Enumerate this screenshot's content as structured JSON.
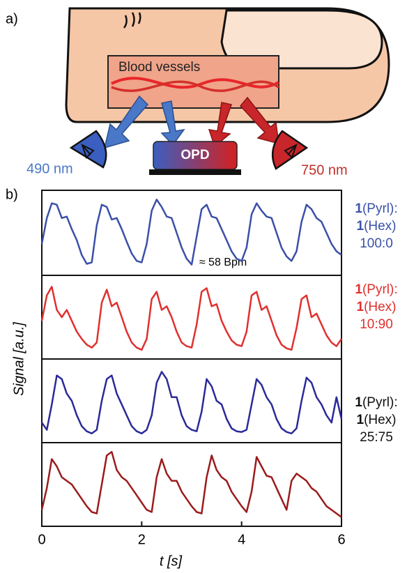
{
  "diagram": {
    "panel_a": "a)",
    "panel_b": "b)",
    "box_label": "Blood vessels",
    "detector": "OPD",
    "led_left": "490 nm",
    "led_right": "750 nm"
  },
  "chart_data": {
    "type": "line",
    "x_label": "t [s]",
    "y_label": "Signal [a.u.]",
    "annotation": "≈ 58 Bpm",
    "xlim": [
      0,
      6
    ],
    "xticks": [
      0,
      2,
      4,
      6
    ],
    "ylim": [
      0,
      1
    ],
    "x": [
      0,
      0.1,
      0.2,
      0.3,
      0.4,
      0.5,
      0.6,
      0.7,
      0.8,
      0.9,
      1,
      1.1,
      1.2,
      1.3,
      1.4,
      1.5,
      1.6,
      1.7,
      1.8,
      1.9,
      2,
      2.1,
      2.2,
      2.3,
      2.4,
      2.5,
      2.6,
      2.7,
      2.8,
      2.9,
      3,
      3.1,
      3.2,
      3.3,
      3.4,
      3.5,
      3.6,
      3.7,
      3.8,
      3.9,
      4,
      4.1,
      4.2,
      4.3,
      4.4,
      4.5,
      4.6,
      4.7,
      4.8,
      4.9,
      5,
      5.1,
      5.2,
      5.3,
      5.4,
      5.5,
      5.6,
      5.7,
      5.8,
      5.9,
      6
    ],
    "series": [
      {
        "color": "#3b4fa8",
        "values": [
          0.35,
          0.7,
          0.9,
          0.88,
          0.7,
          0.72,
          0.55,
          0.4,
          0.2,
          0.08,
          0.1,
          0.6,
          0.88,
          0.85,
          0.68,
          0.7,
          0.55,
          0.38,
          0.22,
          0.12,
          0.1,
          0.35,
          0.8,
          0.95,
          0.85,
          0.72,
          0.7,
          0.5,
          0.3,
          0.15,
          0.07,
          0.45,
          0.82,
          0.88,
          0.72,
          0.7,
          0.55,
          0.4,
          0.25,
          0.15,
          0.12,
          0.3,
          0.75,
          0.9,
          0.8,
          0.72,
          0.7,
          0.5,
          0.3,
          0.18,
          0.12,
          0.25,
          0.65,
          0.88,
          0.82,
          0.7,
          0.65,
          0.5,
          0.35,
          0.25,
          0.2
        ]
      },
      {
        "color": "#e0302e",
        "values": [
          0.45,
          0.8,
          0.92,
          0.6,
          0.5,
          0.6,
          0.45,
          0.3,
          0.2,
          0.12,
          0.08,
          0.15,
          0.7,
          0.88,
          0.65,
          0.7,
          0.5,
          0.3,
          0.15,
          0.08,
          0.05,
          0.2,
          0.75,
          0.85,
          0.6,
          0.65,
          0.5,
          0.3,
          0.15,
          0.1,
          0.08,
          0.4,
          0.85,
          0.9,
          0.65,
          0.68,
          0.45,
          0.3,
          0.18,
          0.12,
          0.1,
          0.3,
          0.8,
          0.85,
          0.6,
          0.65,
          0.45,
          0.25,
          0.12,
          0.07,
          0.05,
          0.35,
          0.75,
          0.8,
          0.5,
          0.55,
          0.4,
          0.25,
          0.15,
          0.1,
          0.2
        ]
      },
      {
        "color": "#2a2a9a",
        "values": [
          0.2,
          0.1,
          0.45,
          0.85,
          0.8,
          0.6,
          0.5,
          0.3,
          0.15,
          0.08,
          0.05,
          0.1,
          0.5,
          0.8,
          0.85,
          0.6,
          0.45,
          0.3,
          0.15,
          0.08,
          0.05,
          0.1,
          0.3,
          0.75,
          0.9,
          0.8,
          0.55,
          0.55,
          0.3,
          0.15,
          0.1,
          0.08,
          0.35,
          0.8,
          0.7,
          0.5,
          0.45,
          0.25,
          0.12,
          0.08,
          0.07,
          0.1,
          0.45,
          0.8,
          0.72,
          0.55,
          0.45,
          0.25,
          0.12,
          0.07,
          0.05,
          0.12,
          0.5,
          0.82,
          0.75,
          0.55,
          0.45,
          0.3,
          0.2,
          0.55,
          0.25
        ]
      },
      {
        "color": "#9b1b1b",
        "values": [
          0.15,
          0.45,
          0.85,
          0.75,
          0.6,
          0.55,
          0.5,
          0.4,
          0.3,
          0.2,
          0.12,
          0.1,
          0.5,
          0.9,
          0.95,
          0.7,
          0.6,
          0.55,
          0.45,
          0.35,
          0.25,
          0.15,
          0.12,
          0.6,
          0.85,
          0.65,
          0.55,
          0.55,
          0.4,
          0.3,
          0.2,
          0.12,
          0.1,
          0.6,
          0.9,
          0.7,
          0.6,
          0.55,
          0.4,
          0.3,
          0.2,
          0.12,
          0.4,
          0.88,
          0.75,
          0.62,
          0.6,
          0.45,
          0.3,
          0.15,
          0.55,
          0.65,
          0.6,
          0.55,
          0.45,
          0.4,
          0.3,
          0.2,
          0.15,
          0.1,
          0.05
        ]
      }
    ],
    "side_labels": [
      {
        "color": "#3a52a8",
        "lines": [
          {
            "strong": "1",
            "text": "(Pyrl):"
          },
          {
            "strong": "1",
            "text": "(Hex)"
          },
          {
            "text": "100:0"
          }
        ]
      },
      {
        "color": "#e0302e",
        "lines": [
          {
            "strong": "1",
            "text": "(Pyrl):"
          },
          {
            "strong": "1",
            "text": "(Hex)"
          },
          {
            "text": "10:90"
          }
        ]
      },
      {
        "color": "#111111",
        "lines": [
          {
            "strong": "1",
            "text": "(Pyrl):"
          },
          {
            "strong": "1",
            "text": "(Hex)"
          },
          {
            "text": "25:75"
          }
        ]
      }
    ]
  }
}
